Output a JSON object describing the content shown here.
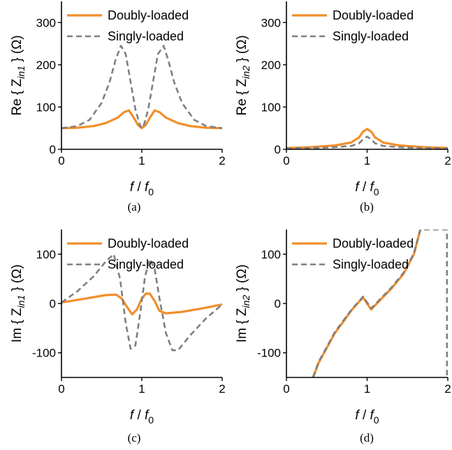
{
  "chart_data": [
    {
      "type": "line",
      "caption": "(a)",
      "xlabel": {
        "var": "f",
        "sep": " / ",
        "base": "f",
        "sub": "0"
      },
      "ylabel": {
        "pre": "Re { Z",
        "sub": "in1",
        "post": " } (Ω)"
      },
      "xlim": [
        0,
        2
      ],
      "ylim": [
        0,
        350
      ],
      "xticks": [
        0,
        1,
        2
      ],
      "yticks": [
        0,
        100,
        200,
        300
      ],
      "legend_position": "top-left",
      "series": [
        {
          "name": "Doubly-loaded",
          "color": "#f28e2b",
          "style": "solid",
          "x": [
            0,
            0.2,
            0.4,
            0.55,
            0.7,
            0.78,
            0.84,
            0.9,
            0.95,
            1.0,
            1.05,
            1.1,
            1.16,
            1.22,
            1.3,
            1.45,
            1.6,
            1.8,
            2.0
          ],
          "y": [
            50,
            51,
            55,
            62,
            75,
            88,
            92,
            75,
            58,
            50,
            58,
            75,
            92,
            88,
            75,
            62,
            55,
            51,
            50
          ]
        },
        {
          "name": "Singly-loaded",
          "color": "#7f7f7f",
          "style": "dashed",
          "x": [
            0,
            0.2,
            0.35,
            0.5,
            0.6,
            0.67,
            0.74,
            0.8,
            0.86,
            0.92,
            0.97,
            1.0,
            1.03,
            1.08,
            1.14,
            1.2,
            1.27,
            1.33,
            1.4,
            1.5,
            1.65,
            1.8,
            2.0
          ],
          "y": [
            50,
            55,
            70,
            110,
            160,
            210,
            245,
            225,
            160,
            95,
            60,
            50,
            60,
            95,
            160,
            225,
            245,
            210,
            160,
            110,
            70,
            55,
            50
          ]
        }
      ]
    },
    {
      "type": "line",
      "caption": "(b)",
      "xlabel": {
        "var": "f",
        "sep": " / ",
        "base": "f",
        "sub": "0"
      },
      "ylabel": {
        "pre": "Re { Z",
        "sub": "in2",
        "post": " } (Ω)"
      },
      "xlim": [
        0,
        2
      ],
      "ylim": [
        0,
        350
      ],
      "xticks": [
        0,
        1,
        2
      ],
      "yticks": [
        0,
        100,
        200,
        300
      ],
      "legend_position": "top-left",
      "series": [
        {
          "name": "Doubly-loaded",
          "color": "#f28e2b",
          "style": "solid",
          "x": [
            0,
            0.3,
            0.6,
            0.8,
            0.9,
            0.95,
            1.0,
            1.05,
            1.1,
            1.2,
            1.4,
            1.7,
            2.0
          ],
          "y": [
            3,
            5,
            9,
            16,
            28,
            42,
            48,
            42,
            28,
            16,
            9,
            5,
            3
          ]
        },
        {
          "name": "Singly-loaded",
          "color": "#7f7f7f",
          "style": "dashed",
          "x": [
            0,
            0.3,
            0.6,
            0.8,
            0.9,
            0.95,
            1.0,
            1.05,
            1.1,
            1.2,
            1.4,
            1.7,
            2.0
          ],
          "y": [
            2,
            3,
            5,
            8,
            14,
            24,
            30,
            24,
            14,
            8,
            5,
            3,
            2
          ]
        }
      ]
    },
    {
      "type": "line",
      "caption": "(c)",
      "xlabel": {
        "var": "f",
        "sep": " / ",
        "base": "f",
        "sub": "0"
      },
      "ylabel": {
        "pre": "Im { Z",
        "sub": "in1",
        "post": " } (Ω)"
      },
      "xlim": [
        0,
        2
      ],
      "ylim": [
        -150,
        150
      ],
      "xticks": [
        0,
        1,
        2
      ],
      "yticks": [
        -100,
        0,
        100
      ],
      "legend_position": "top-left",
      "series": [
        {
          "name": "Doubly-loaded",
          "color": "#f28e2b",
          "style": "solid",
          "x": [
            0,
            0.3,
            0.55,
            0.68,
            0.75,
            0.82,
            0.88,
            0.94,
            1.0,
            1.05,
            1.1,
            1.16,
            1.22,
            1.3,
            1.5,
            1.75,
            2.0
          ],
          "y": [
            2,
            10,
            17,
            18,
            10,
            -8,
            -22,
            -12,
            10,
            20,
            20,
            5,
            -15,
            -20,
            -17,
            -10,
            -2
          ],
          "dashed": false
        },
        {
          "name": "Singly-loaded",
          "color": "#7f7f7f",
          "style": "dashed",
          "x": [
            0,
            0.2,
            0.4,
            0.55,
            0.65,
            0.73,
            0.8,
            0.86,
            0.92,
            0.98,
            1.04,
            1.1,
            1.16,
            1.22,
            1.3,
            1.38,
            1.45,
            1.6,
            1.8,
            2.0
          ],
          "y": [
            2,
            25,
            55,
            85,
            100,
            50,
            -40,
            -92,
            -85,
            -20,
            55,
            90,
            70,
            10,
            -60,
            -95,
            -95,
            -65,
            -30,
            -2
          ]
        }
      ]
    },
    {
      "type": "line",
      "caption": "(d)",
      "xlabel": {
        "var": "f",
        "sep": " / ",
        "base": "f",
        "sub": "0"
      },
      "ylabel": {
        "pre": "Im { Z",
        "sub": "in2",
        "post": " } (Ω)"
      },
      "xlim": [
        0,
        2
      ],
      "ylim": [
        -150,
        150
      ],
      "xticks": [
        0,
        1,
        2
      ],
      "yticks": [
        -100,
        0,
        100
      ],
      "legend_position": "top-left",
      "series": [
        {
          "name": "Doubly-loaded",
          "color": "#f28e2b",
          "style": "solid",
          "x": [
            0.33,
            0.4,
            0.5,
            0.6,
            0.7,
            0.8,
            0.88,
            0.95,
            1.0,
            1.05,
            1.15,
            1.3,
            1.45,
            1.58,
            1.66
          ],
          "y": [
            -150,
            -120,
            -90,
            -60,
            -38,
            -15,
            0,
            12,
            0,
            -12,
            5,
            30,
            60,
            100,
            150
          ]
        },
        {
          "name": "Singly-loaded",
          "color": "#7f7f7f",
          "style": "dashed",
          "x": [
            0.33,
            0.4,
            0.5,
            0.6,
            0.7,
            0.8,
            0.88,
            0.95,
            1.0,
            1.05,
            1.15,
            1.3,
            1.45,
            1.58,
            1.66,
            1.99,
            1.99
          ],
          "y": [
            -150,
            -118,
            -88,
            -58,
            -36,
            -14,
            1,
            14,
            2,
            -10,
            7,
            32,
            62,
            102,
            150,
            150,
            -150
          ]
        }
      ]
    }
  ]
}
